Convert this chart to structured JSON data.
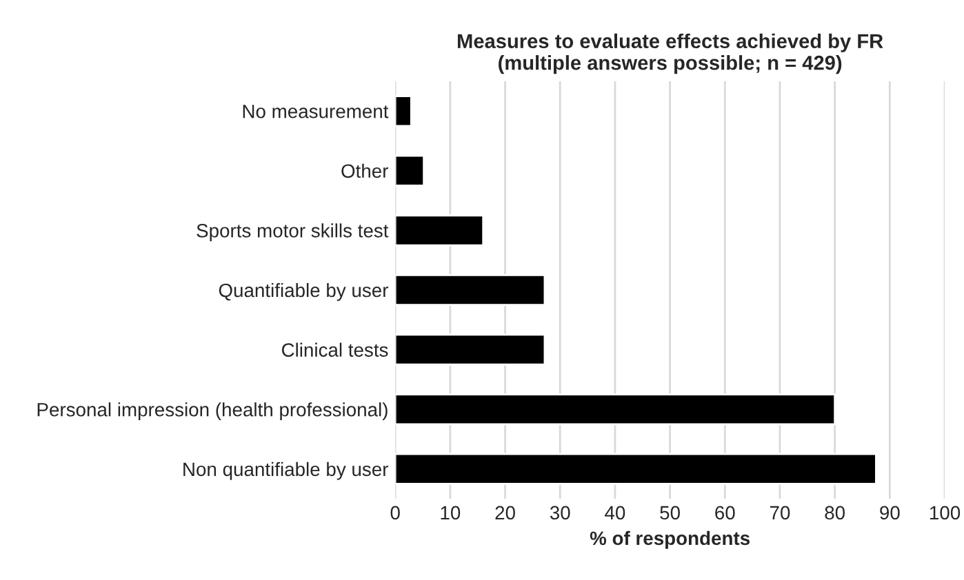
{
  "chart_data": {
    "type": "bar",
    "orientation": "horizontal",
    "title": "Measures to evaluate effects achieved by FR\n(multiple answers possible; n = 429)",
    "xlabel": "% of respondents",
    "categories": [
      "No measurement",
      "Other",
      "Sports motor skills test",
      "Quantifiable by user",
      "Clinical tests",
      "Personal impression (health professional)",
      "Non quantifiable by user"
    ],
    "values": [
      2.9,
      5.2,
      16,
      27.2,
      27.2,
      80,
      87.5
    ],
    "color": "#000000",
    "xlim": [
      0,
      100
    ],
    "xticks": [
      0,
      10,
      20,
      30,
      40,
      50,
      60,
      70,
      80,
      90,
      100
    ],
    "grid": "x"
  }
}
